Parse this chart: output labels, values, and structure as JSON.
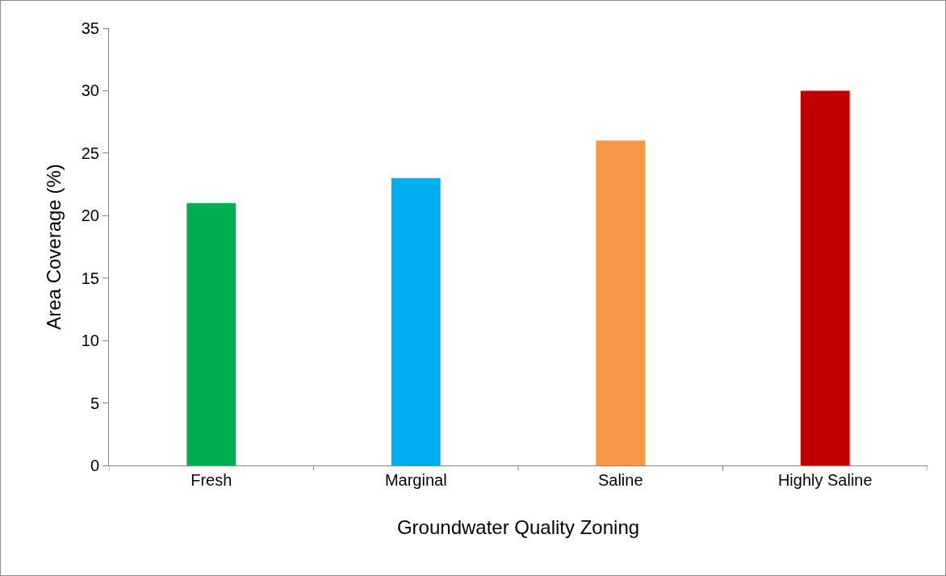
{
  "chart_data": {
    "type": "bar",
    "xlabel": "Groundwater Quality Zoning",
    "ylabel": "Area Coverage (%)",
    "categories": [
      "Fresh",
      "Marginal",
      "Saline",
      "Highly Saline"
    ],
    "values": [
      21,
      23,
      26,
      30
    ],
    "colors": [
      "#00b050",
      "#00b0f0",
      "#f79646",
      "#c00000"
    ],
    "ylim": [
      0,
      35
    ],
    "yticks": [
      0,
      5,
      10,
      15,
      20,
      25,
      30,
      35
    ],
    "grid": false
  }
}
